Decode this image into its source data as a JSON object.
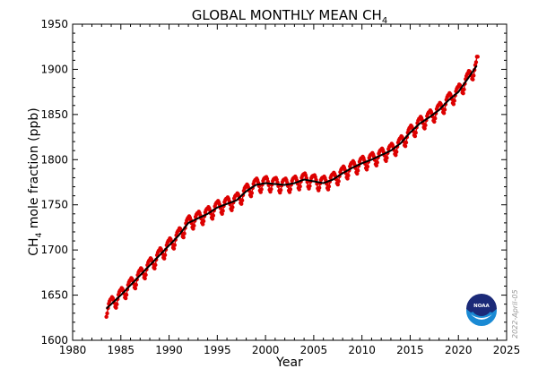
{
  "chart_data": {
    "type": "line",
    "title": "GLOBAL MONTHLY MEAN CH",
    "title_subscript": "4",
    "xlabel": "Year",
    "ylabel_prefix": "CH",
    "ylabel_subscript": "4",
    "ylabel_suffix": " mole fraction (ppb)",
    "xlim": [
      1980,
      2025
    ],
    "ylim": [
      1600,
      1950
    ],
    "xticks": [
      1980,
      1985,
      1990,
      1995,
      2000,
      2005,
      2010,
      2015,
      2020,
      2025
    ],
    "yticks": [
      1600,
      1650,
      1700,
      1750,
      1800,
      1850,
      1900,
      1950
    ],
    "grid": false,
    "annotation": "2022-April-05",
    "logo_text": "NOAA",
    "series": [
      {
        "name": "trend",
        "color": "#000000",
        "x": [
          1983.5,
          1984,
          1985,
          1986,
          1987,
          1988,
          1989,
          1990,
          1991,
          1992,
          1993,
          1994,
          1995,
          1996,
          1997,
          1998,
          1999,
          2000,
          2001,
          2002,
          2003,
          2004,
          2005,
          2006,
          2007,
          2008,
          2009,
          2010,
          2011,
          2012,
          2013,
          2014,
          2015,
          2016,
          2017,
          2018,
          2019,
          2020,
          2021,
          2021.9
        ],
        "y": [
          1635,
          1640,
          1650,
          1661,
          1672,
          1683,
          1694,
          1705,
          1716,
          1730,
          1735,
          1740,
          1747,
          1751,
          1755,
          1765,
          1772,
          1774,
          1773,
          1772,
          1774,
          1778,
          1776,
          1774,
          1778,
          1785,
          1791,
          1796,
          1800,
          1805,
          1810,
          1818,
          1830,
          1840,
          1847,
          1855,
          1866,
          1875,
          1890,
          1904
        ]
      },
      {
        "name": "monthly mean",
        "color": "#dd0000",
        "seasonal_offsets_by_month": [
          6,
          7,
          5,
          2,
          -2,
          -7,
          -9,
          -6,
          -1,
          3,
          5,
          6
        ]
      }
    ]
  }
}
